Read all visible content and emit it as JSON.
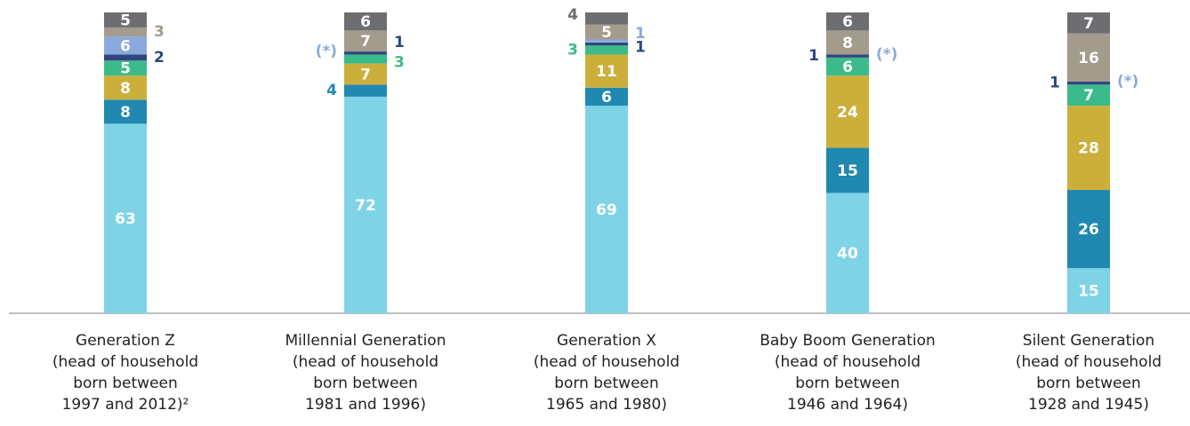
{
  "chart_data": {
    "type": "stacked_bar",
    "categories": [
      "Generation Z\n(head of household\nborn between\n1997 and 2012)²",
      "Millennial Generation\n(head of household\nborn between\n1981 and 1996)",
      "Generation X\n(head of household\nborn between\n1965 and 1980)",
      "Baby Boom Generation\n(head of household\nborn between\n1946 and 1964)",
      "Silent Generation\n(head of household\nborn between\n1928 and 1945)"
    ],
    "series": [
      {
        "color": "#7fd3e7",
        "values": [
          63,
          72,
          69,
          40,
          15
        ]
      },
      {
        "color": "#2088b1",
        "values": [
          8,
          4,
          6,
          15,
          26
        ]
      },
      {
        "color": "#ccaf3b",
        "values": [
          8,
          7,
          11,
          24,
          28
        ]
      },
      {
        "color": "#3cbb8a",
        "values": [
          5,
          3,
          3,
          6,
          7
        ]
      },
      {
        "color": "#2f4680",
        "values": [
          2,
          1,
          1,
          1,
          1
        ]
      },
      {
        "color": "#8aa9dd",
        "values": [
          6,
          0,
          1,
          0,
          0
        ],
        "value_labels": [
          "6",
          "(*)",
          "1",
          "(*)",
          "(*)"
        ]
      },
      {
        "color": "#a39b8b",
        "values": [
          3,
          7,
          5,
          8,
          16
        ]
      },
      {
        "color": "#6d6e71",
        "values": [
          5,
          6,
          4,
          6,
          7
        ]
      }
    ]
  }
}
